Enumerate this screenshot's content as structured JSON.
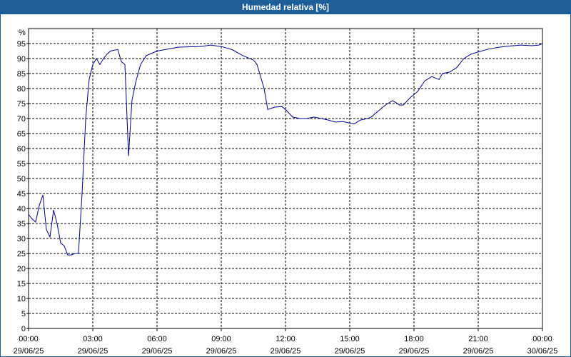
{
  "chart_data": {
    "type": "line",
    "title": "Humedad relativa [%]",
    "y_label": "%",
    "x": [
      0,
      0.17,
      0.33,
      0.5,
      0.67,
      0.83,
      1.0,
      1.17,
      1.33,
      1.5,
      1.67,
      1.83,
      2.0,
      2.17,
      2.33,
      2.5,
      2.67,
      2.83,
      3.0,
      3.17,
      3.33,
      3.5,
      3.67,
      3.83,
      4.0,
      4.17,
      4.33,
      4.5,
      4.67,
      4.83,
      5.0,
      5.23,
      5.5,
      6.0,
      7.0,
      8.0,
      8.5,
      9.0,
      9.5,
      10.0,
      10.5,
      10.67,
      11.0,
      11.17,
      11.5,
      11.83,
      12.0,
      12.33,
      12.67,
      13.0,
      13.33,
      13.67,
      14.0,
      14.33,
      14.67,
      15.0,
      15.2,
      15.5,
      15.83,
      16.0,
      16.33,
      16.67,
      17.0,
      17.33,
      17.5,
      17.83,
      18.17,
      18.5,
      18.83,
      19.17,
      19.33,
      19.67,
      20.0,
      20.33,
      20.67,
      21.0,
      21.5,
      22.0,
      22.5,
      23.0,
      23.5,
      23.83,
      24.0
    ],
    "series": [
      {
        "name": "Humedad relativa",
        "color": "#00008b",
        "values": [
          38,
          36.5,
          35.5,
          41,
          44.5,
          33,
          30.5,
          39.5,
          35,
          28.5,
          27.5,
          24.5,
          24.5,
          25,
          25,
          45,
          70,
          83,
          88,
          90,
          88,
          90,
          91.5,
          92.5,
          92.8,
          93,
          89,
          88,
          57.5,
          76,
          82,
          88,
          91,
          92.5,
          93.8,
          94,
          94.5,
          94,
          93,
          91,
          89.5,
          88,
          80,
          73,
          73.8,
          74,
          73,
          70.5,
          70,
          70,
          70.5,
          70,
          69.5,
          68.8,
          69,
          68.5,
          68.2,
          69.5,
          70,
          70.5,
          72.5,
          74.5,
          76,
          74.5,
          74.5,
          77,
          79,
          82.5,
          84,
          83,
          85,
          85.5,
          87,
          90,
          91.5,
          92.2,
          93.2,
          93.8,
          94.2,
          94.5,
          94.3,
          94.5,
          95
        ]
      }
    ],
    "xlim": [
      0,
      24
    ],
    "xticks": [
      {
        "value": 0,
        "label": "00:00",
        "date": "29/06/25"
      },
      {
        "value": 3,
        "label": "03:00",
        "date": "29/06/25"
      },
      {
        "value": 6,
        "label": "06:00",
        "date": "29/06/25"
      },
      {
        "value": 9,
        "label": "09:00",
        "date": "29/06/25"
      },
      {
        "value": 12,
        "label": "12:00",
        "date": "29/06/25"
      },
      {
        "value": 15,
        "label": "15:00",
        "date": "29/06/25"
      },
      {
        "value": 18,
        "label": "18:00",
        "date": "29/06/25"
      },
      {
        "value": 21,
        "label": "21:00",
        "date": "29/06/25"
      },
      {
        "value": 24,
        "label": "00:00",
        "date": "30/06/25"
      }
    ],
    "ylim": [
      0,
      100
    ],
    "yticks": [
      0,
      5,
      10,
      15,
      20,
      25,
      30,
      35,
      40,
      45,
      50,
      55,
      60,
      65,
      70,
      75,
      80,
      85,
      90,
      95
    ],
    "grid": true
  }
}
